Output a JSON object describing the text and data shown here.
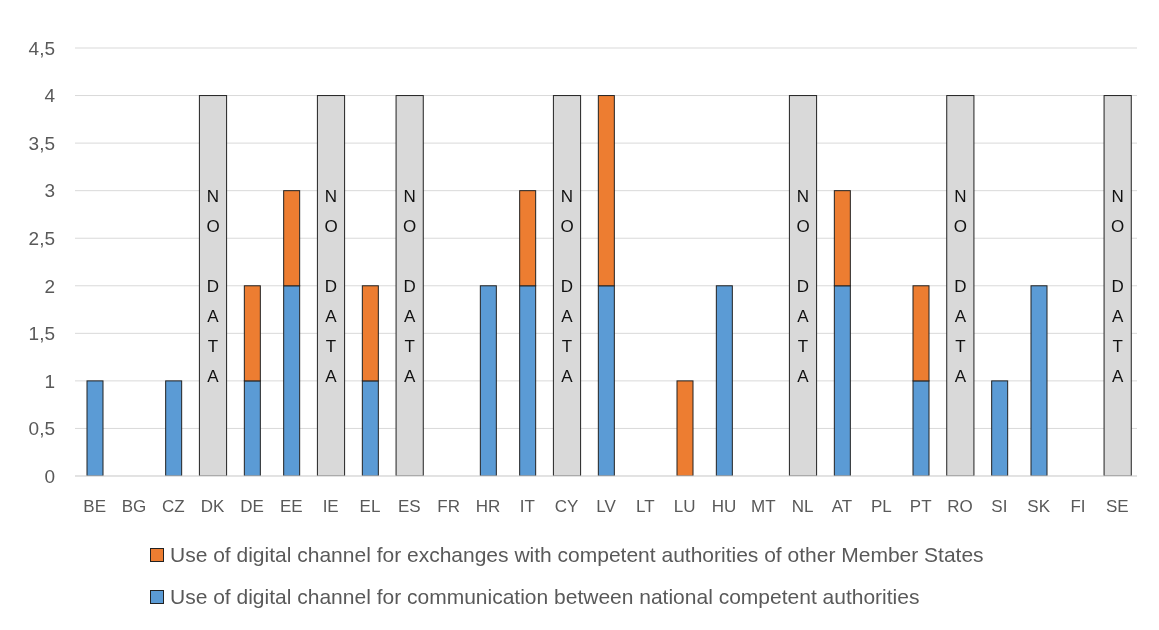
{
  "chart_data": {
    "type": "bar",
    "stacked": true,
    "categories": [
      "BE",
      "BG",
      "CZ",
      "DK",
      "DE",
      "EE",
      "IE",
      "EL",
      "ES",
      "FR",
      "HR",
      "IT",
      "CY",
      "LV",
      "LT",
      "LU",
      "HU",
      "MT",
      "NL",
      "AT",
      "PL",
      "PT",
      "RO",
      "SI",
      "SK",
      "FI",
      "SE"
    ],
    "series": [
      {
        "name": "Use of digital channel for communication between national competent authorities",
        "color": "#5b9bd5",
        "values": [
          1,
          null,
          1,
          null,
          1,
          2,
          null,
          1,
          null,
          null,
          2,
          2,
          null,
          2,
          null,
          null,
          2,
          null,
          null,
          2,
          null,
          1,
          null,
          1,
          2,
          null,
          null
        ]
      },
      {
        "name": "Use of digital channel for exchanges with competent authorities of other Member States",
        "color": "#ed7d31",
        "values": [
          null,
          null,
          null,
          null,
          1,
          1,
          null,
          1,
          null,
          null,
          null,
          1,
          null,
          2,
          null,
          1,
          null,
          null,
          null,
          1,
          null,
          1,
          null,
          null,
          null,
          null,
          null
        ]
      },
      {
        "color": "#d9d9d9",
        "values": [
          null,
          null,
          null,
          4,
          null,
          null,
          4,
          null,
          4,
          null,
          null,
          null,
          4,
          null,
          null,
          null,
          null,
          null,
          4,
          null,
          null,
          null,
          4,
          null,
          null,
          null,
          4
        ],
        "value_labels": [
          null,
          null,
          null,
          "NO DATA",
          null,
          null,
          "NO DATA",
          null,
          "NO DATA",
          null,
          null,
          null,
          "NO DATA",
          null,
          null,
          null,
          null,
          null,
          "NO DATA",
          null,
          null,
          null,
          "NO DATA",
          null,
          null,
          null,
          "NO DATA"
        ]
      }
    ],
    "ylim": [
      0,
      4.5
    ],
    "yticks": [
      0,
      {
        "value": 0.5,
        "label": "0,5"
      },
      1,
      {
        "value": 1.5,
        "label": "1,5"
      },
      2,
      {
        "value": 2.5,
        "label": "2,5"
      },
      3,
      {
        "value": 3.5,
        "label": "3,5"
      },
      4,
      {
        "value": 4.5,
        "label": "4,5"
      }
    ],
    "grid": "y",
    "legend": "bottom"
  }
}
